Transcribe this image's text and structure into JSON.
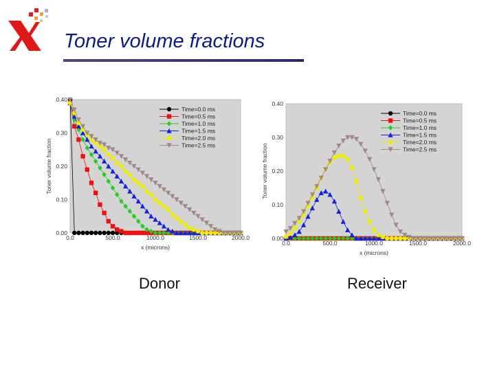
{
  "slide": {
    "title": "Toner volume fractions",
    "caption_left": "Donor",
    "caption_right": "Receiver"
  },
  "chart_data": [
    {
      "type": "line",
      "x_ticks": [
        "0.0",
        "500.0",
        "1000.0",
        "1500.0",
        "2000.0"
      ],
      "y_ticks": [
        "0.00",
        "0.10",
        "0.20",
        "0.30",
        "0.40"
      ],
      "xlabel": "x (microns)",
      "ylabel": "Toner volume fraction",
      "xlim": [
        0,
        2000
      ],
      "ylim": [
        0,
        0.4
      ],
      "grid": false,
      "legend_position": "top-right",
      "series": [
        {
          "name": "Time=0.0 ms",
          "color": "#000000",
          "marker": "circle",
          "x": [
            0,
            50,
            100,
            150,
            200,
            250,
            300,
            350,
            400,
            450,
            500,
            550,
            600,
            650,
            700,
            750,
            800,
            850,
            900,
            950,
            1000,
            1050,
            1100,
            1150,
            1200,
            1250,
            1300,
            1350,
            1400,
            1450,
            1500,
            1550,
            1600,
            1650,
            1700,
            1750,
            1800,
            1850,
            1900,
            1950,
            2000
          ],
          "y": [
            0.4,
            0.0,
            0.0,
            0.0,
            0.0,
            0.0,
            0.0,
            0.0,
            0.0,
            0.0,
            0.0,
            0.0,
            0.0,
            0.0,
            0.0,
            0.0,
            0.0,
            0.0,
            0.0,
            0.0,
            0.0,
            0.0,
            0.0,
            0.0,
            0.0,
            0.0,
            0.0,
            0.0,
            0.0,
            0.0,
            0.0,
            0.0,
            0.0,
            0.0,
            0.0,
            0.0,
            0.0,
            0.0,
            0.0,
            0.0,
            0.0
          ]
        },
        {
          "name": "Time=0.5 ms",
          "color": "#ee1111",
          "marker": "square",
          "x": [
            0,
            50,
            100,
            150,
            200,
            250,
            300,
            350,
            400,
            450,
            500,
            550,
            600,
            650,
            700,
            750,
            800,
            850,
            900,
            950,
            1000,
            1050,
            1100,
            1150,
            1200,
            1250,
            1300,
            1350,
            1400,
            1450,
            1500,
            1550,
            1600,
            1650,
            1700,
            1750,
            1800,
            1850,
            1900,
            1950,
            2000
          ],
          "y": [
            0.39,
            0.32,
            0.28,
            0.23,
            0.19,
            0.15,
            0.12,
            0.085,
            0.06,
            0.035,
            0.02,
            0.01,
            0.005,
            0,
            0,
            0,
            0,
            0,
            0,
            0,
            0,
            0,
            0,
            0,
            0,
            0,
            0,
            0,
            0,
            0,
            0,
            0,
            0,
            0,
            0,
            0,
            0,
            0,
            0,
            0,
            0
          ]
        },
        {
          "name": "Time=1.0 ms",
          "color": "#22cc22",
          "marker": "diamond",
          "x": [
            0,
            50,
            100,
            150,
            200,
            250,
            300,
            350,
            400,
            450,
            500,
            550,
            600,
            650,
            700,
            750,
            800,
            850,
            900,
            950,
            1000,
            1050,
            1100,
            1150,
            1200,
            1250,
            1300,
            1350,
            1400,
            1450,
            1500,
            1550,
            1600,
            1650,
            1700,
            1750,
            1800,
            1850,
            1900,
            1950,
            2000
          ],
          "y": [
            0.39,
            0.34,
            0.31,
            0.28,
            0.255,
            0.235,
            0.215,
            0.195,
            0.175,
            0.155,
            0.135,
            0.115,
            0.095,
            0.08,
            0.065,
            0.05,
            0.035,
            0.02,
            0.01,
            0.005,
            0,
            0,
            0,
            0,
            0,
            0,
            0,
            0,
            0,
            0,
            0,
            0,
            0,
            0,
            0,
            0,
            0,
            0,
            0,
            0,
            0
          ]
        },
        {
          "name": "Time=1.5 ms",
          "color": "#1122dd",
          "marker": "triangle-up",
          "x": [
            0,
            50,
            100,
            150,
            200,
            250,
            300,
            350,
            400,
            450,
            500,
            550,
            600,
            650,
            700,
            750,
            800,
            850,
            900,
            950,
            1000,
            1050,
            1100,
            1150,
            1200,
            1250,
            1300,
            1350,
            1400,
            1450,
            1500,
            1550,
            1600,
            1650,
            1700,
            1750,
            1800,
            1850,
            1900,
            1950,
            2000
          ],
          "y": [
            0.39,
            0.35,
            0.32,
            0.3,
            0.28,
            0.26,
            0.245,
            0.23,
            0.215,
            0.2,
            0.185,
            0.17,
            0.155,
            0.14,
            0.125,
            0.11,
            0.095,
            0.08,
            0.065,
            0.05,
            0.04,
            0.03,
            0.02,
            0.01,
            0.005,
            0,
            0,
            0,
            0,
            0,
            0,
            0,
            0,
            0,
            0,
            0,
            0,
            0,
            0,
            0,
            0
          ]
        },
        {
          "name": "Time=2.0 ms",
          "color": "#eeee00",
          "marker": "circle",
          "x": [
            0,
            50,
            100,
            150,
            200,
            250,
            300,
            350,
            400,
            450,
            500,
            550,
            600,
            650,
            700,
            750,
            800,
            850,
            900,
            950,
            1000,
            1050,
            1100,
            1150,
            1200,
            1250,
            1300,
            1350,
            1400,
            1450,
            1500,
            1550,
            1600,
            1650,
            1700,
            1750,
            1800,
            1850,
            1900,
            1950,
            2000
          ],
          "y": [
            0.39,
            0.36,
            0.33,
            0.31,
            0.295,
            0.28,
            0.27,
            0.26,
            0.25,
            0.235,
            0.225,
            0.21,
            0.2,
            0.185,
            0.175,
            0.16,
            0.15,
            0.14,
            0.125,
            0.115,
            0.1,
            0.09,
            0.08,
            0.07,
            0.055,
            0.045,
            0.035,
            0.025,
            0.015,
            0.01,
            0.005,
            0,
            0,
            0,
            0,
            0,
            0,
            0,
            0,
            0,
            0
          ]
        },
        {
          "name": "Time=2.5 ms",
          "color": "#a08888",
          "marker": "triangle-down",
          "x": [
            0,
            50,
            100,
            150,
            200,
            250,
            300,
            350,
            400,
            450,
            500,
            550,
            600,
            650,
            700,
            750,
            800,
            850,
            900,
            950,
            1000,
            1050,
            1100,
            1150,
            1200,
            1250,
            1300,
            1350,
            1400,
            1450,
            1500,
            1550,
            1600,
            1650,
            1700,
            1750,
            1800,
            1850,
            1900,
            1950,
            2000
          ],
          "y": [
            0.4,
            0.37,
            0.34,
            0.32,
            0.3,
            0.29,
            0.28,
            0.27,
            0.265,
            0.255,
            0.25,
            0.24,
            0.23,
            0.22,
            0.21,
            0.2,
            0.19,
            0.18,
            0.17,
            0.16,
            0.15,
            0.14,
            0.13,
            0.12,
            0.11,
            0.1,
            0.09,
            0.08,
            0.07,
            0.06,
            0.05,
            0.04,
            0.03,
            0.02,
            0.01,
            0.005,
            0,
            0,
            0,
            0,
            0
          ]
        }
      ]
    },
    {
      "type": "line",
      "x_ticks": [
        "0.0",
        "500.0",
        "1000.0",
        "1500.0",
        "2000.0"
      ],
      "y_ticks": [
        "0.00",
        "0.10",
        "0.20",
        "0.30",
        "0.40"
      ],
      "xlabel": "x (microns)",
      "ylabel": "Toner volume fraction",
      "xlim": [
        0,
        2000
      ],
      "ylim": [
        0,
        0.4
      ],
      "grid": false,
      "legend_position": "top-right",
      "series": [
        {
          "name": "Time=0.0 ms",
          "color": "#000000",
          "marker": "circle",
          "x": [
            0,
            50,
            100,
            150,
            200,
            250,
            300,
            350,
            400,
            450,
            500,
            550,
            600,
            650,
            700,
            750,
            800,
            850,
            900,
            950,
            1000,
            1050,
            1100,
            1150,
            1200,
            1250,
            1300,
            1350,
            1400,
            1450,
            1500,
            1550,
            1600,
            1650,
            1700,
            1750,
            1800,
            1850,
            1900,
            1950,
            2000
          ],
          "y": [
            0,
            0,
            0,
            0,
            0,
            0,
            0,
            0,
            0,
            0,
            0,
            0,
            0,
            0,
            0,
            0,
            0,
            0,
            0,
            0,
            0,
            0,
            0,
            0,
            0,
            0,
            0,
            0,
            0,
            0,
            0,
            0,
            0,
            0,
            0,
            0,
            0,
            0,
            0,
            0,
            0
          ]
        },
        {
          "name": "Time=0.5 ms",
          "color": "#ee1111",
          "marker": "square",
          "x": [
            0,
            50,
            100,
            150,
            200,
            250,
            300,
            350,
            400,
            450,
            500,
            550,
            600,
            650,
            700,
            750,
            800,
            850,
            900,
            950,
            1000,
            1050,
            1100,
            1150,
            1200,
            1250,
            1300,
            1350,
            1400,
            1450,
            1500,
            1550,
            1600,
            1650,
            1700,
            1750,
            1800,
            1850,
            1900,
            1950,
            2000
          ],
          "y": [
            0,
            0,
            0,
            0,
            0,
            0,
            0,
            0,
            0,
            0,
            0,
            0,
            0,
            0,
            0,
            0,
            0,
            0,
            0,
            0,
            0,
            0,
            0,
            0,
            0,
            0,
            0,
            0,
            0,
            0,
            0,
            0,
            0,
            0,
            0,
            0,
            0,
            0,
            0,
            0,
            0
          ]
        },
        {
          "name": "Time=1.0 ms",
          "color": "#22cc22",
          "marker": "diamond",
          "x": [
            0,
            50,
            100,
            150,
            200,
            250,
            300,
            350,
            400,
            450,
            500,
            550,
            600,
            650,
            700,
            750,
            800,
            850,
            900,
            950,
            1000,
            1050,
            1100,
            1150,
            1200,
            1250,
            1300,
            1350,
            1400,
            1450,
            1500,
            1550,
            1600,
            1650,
            1700,
            1750,
            1800,
            1850,
            1900,
            1950,
            2000
          ],
          "y": [
            0,
            0,
            0,
            0,
            0,
            0,
            0,
            0,
            0,
            0,
            0,
            0,
            0,
            0,
            0,
            0,
            0,
            0,
            0,
            0,
            0,
            0,
            0,
            0,
            0,
            0,
            0,
            0,
            0,
            0,
            0,
            0,
            0,
            0,
            0,
            0,
            0,
            0,
            0,
            0,
            0
          ]
        },
        {
          "name": "Time=1.5 ms",
          "color": "#1122dd",
          "marker": "triangle-up",
          "x": [
            0,
            50,
            100,
            150,
            200,
            250,
            300,
            350,
            400,
            450,
            500,
            550,
            600,
            650,
            700,
            750,
            800,
            850,
            900,
            950,
            1000,
            1050,
            1100,
            1150,
            1200,
            1250,
            1300,
            1350,
            1400,
            1450,
            1500,
            1550,
            1600,
            1650,
            1700,
            1750,
            1800,
            1850,
            1900,
            1950,
            2000
          ],
          "y": [
            0,
            0.003,
            0.01,
            0.02,
            0.04,
            0.065,
            0.09,
            0.115,
            0.135,
            0.14,
            0.13,
            0.11,
            0.08,
            0.05,
            0.025,
            0.01,
            0,
            0,
            0,
            0,
            0,
            0,
            0,
            0,
            0,
            0,
            0,
            0,
            0,
            0,
            0,
            0,
            0,
            0,
            0,
            0,
            0,
            0,
            0,
            0,
            0
          ]
        },
        {
          "name": "Time=2.0 ms",
          "color": "#eeee00",
          "marker": "circle",
          "x": [
            0,
            50,
            100,
            150,
            200,
            250,
            300,
            350,
            400,
            450,
            500,
            550,
            600,
            650,
            700,
            750,
            800,
            850,
            900,
            950,
            1000,
            1050,
            1100,
            1150,
            1200,
            1250,
            1300,
            1350,
            1400,
            1450,
            1500,
            1550,
            1600,
            1650,
            1700,
            1750,
            1800,
            1850,
            1900,
            1950,
            2000
          ],
          "y": [
            0.005,
            0.015,
            0.03,
            0.05,
            0.07,
            0.095,
            0.12,
            0.15,
            0.18,
            0.205,
            0.225,
            0.24,
            0.245,
            0.245,
            0.235,
            0.21,
            0.17,
            0.12,
            0.08,
            0.05,
            0.025,
            0.01,
            0.004,
            0,
            0,
            0,
            0,
            0,
            0,
            0,
            0,
            0,
            0,
            0,
            0,
            0,
            0,
            0,
            0,
            0,
            0
          ]
        },
        {
          "name": "Time=2.5 ms",
          "color": "#a08888",
          "marker": "triangle-down",
          "x": [
            0,
            50,
            100,
            150,
            200,
            250,
            300,
            350,
            400,
            450,
            500,
            550,
            600,
            650,
            700,
            750,
            800,
            850,
            900,
            950,
            1000,
            1050,
            1100,
            1150,
            1200,
            1250,
            1300,
            1350,
            1400,
            1450,
            1500,
            1550,
            1600,
            1650,
            1700,
            1750,
            1800,
            1850,
            1900,
            1950,
            2000
          ],
          "y": [
            0.02,
            0.03,
            0.045,
            0.06,
            0.08,
            0.105,
            0.13,
            0.155,
            0.18,
            0.205,
            0.23,
            0.255,
            0.275,
            0.29,
            0.3,
            0.3,
            0.295,
            0.28,
            0.26,
            0.235,
            0.205,
            0.175,
            0.14,
            0.105,
            0.07,
            0.04,
            0.02,
            0.01,
            0.004,
            0,
            0,
            0,
            0,
            0,
            0,
            0,
            0,
            0,
            0,
            0,
            0
          ]
        }
      ]
    }
  ]
}
